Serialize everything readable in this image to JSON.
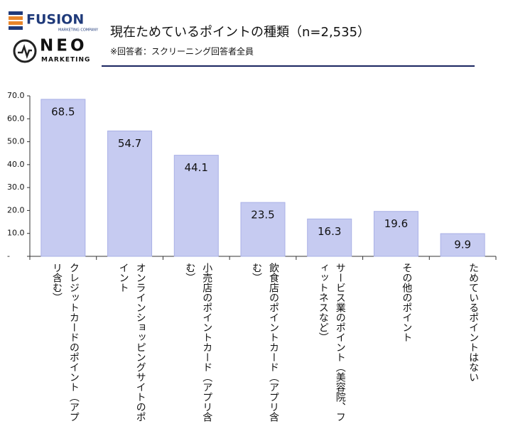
{
  "logos": {
    "fusion": "FUSION",
    "fusion_sub": "MARKETING COMPANY",
    "neo": "NEO",
    "neo_sub": "MARKETING"
  },
  "chart_data": {
    "type": "bar",
    "title": "現在ためているポイントの種類（n=2,535）",
    "subtitle": "※回答者：スクリーニング回答者全員",
    "categories": [
      "クレジットカードのポイント（アプリ含む）",
      "オンラインショッピングサイトのポイント",
      "小売店のポイントカード（アプリ含む）",
      "飲食店のポイントカード（アプリ含む）",
      "サービス業のポイント（美容院、フィットネスなど）",
      "その他のポイント",
      "ためているポイントはない"
    ],
    "values": [
      68.5,
      54.7,
      44.1,
      23.5,
      16.3,
      19.6,
      9.9
    ],
    "color": "#c6cbf1",
    "ylim": [
      0,
      70
    ],
    "yticks": [
      {
        "value": 0,
        "label": "-"
      },
      {
        "value": 10,
        "label": "10.0"
      },
      {
        "value": 20,
        "label": "20.0"
      },
      {
        "value": 30,
        "label": "30.0"
      },
      {
        "value": 40,
        "label": "40.0"
      },
      {
        "value": 50,
        "label": "50.0"
      },
      {
        "value": 60,
        "label": "60.0"
      },
      {
        "value": 70,
        "label": "70.0"
      }
    ]
  }
}
